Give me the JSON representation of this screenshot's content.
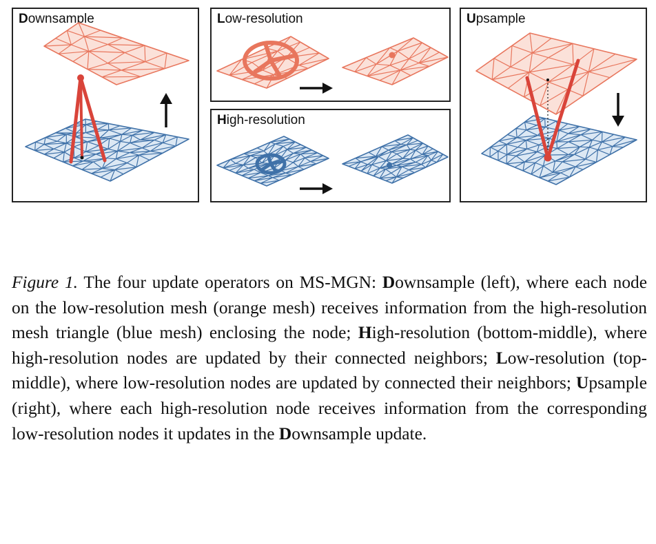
{
  "colors": {
    "orange": "#e8765d",
    "orange_fill": "#fbe1d9",
    "blue": "#3f71a8",
    "blue_fill": "#dce8f4",
    "link": "#d9443a",
    "frame": "#222222"
  },
  "panels": {
    "downsample": {
      "initial": "D",
      "rest": "ownsample"
    },
    "low_resolution": {
      "initial": "L",
      "rest": "ow-resolution"
    },
    "high_resolution": {
      "initial": "H",
      "rest": "igh-resolution"
    },
    "upsample": {
      "initial": "U",
      "rest": "psample"
    }
  },
  "icons": {
    "up_arrow": "up-arrow-icon",
    "down_arrow": "down-arrow-icon",
    "right_arrow": "right-arrow-icon"
  },
  "caption": {
    "label": "Figure 1.",
    "s1": " The four update operators on MS-MGN: ",
    "b1": "D",
    "s2": "ownsample (left), where each node on the low-resolution mesh (orange mesh) receives information from the high-resolution mesh triangle (blue mesh) enclosing the node; ",
    "b2": "H",
    "s3": "igh-resolution (bottom-middle), where high-resolution nodes are updated by their connected neighbors; ",
    "b3": "L",
    "s4": "ow-resolution (top-middle), where low-resolution nodes are updated by connected their neighbors; ",
    "b4": "U",
    "s5": "psample (right), where each high-resolution node receives information from the corresponding low-resolution nodes it updates in the ",
    "b5": "D",
    "s6": "ownsample update."
  }
}
